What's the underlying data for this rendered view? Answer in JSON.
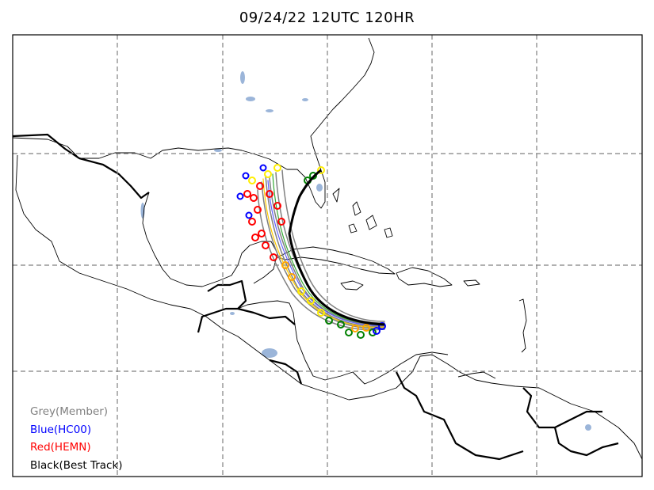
{
  "title": "09/24/22 12UTC 120HR",
  "legend": [
    {
      "label": "Grey(Member)",
      "color": "#808080"
    },
    {
      "label": "Blue(HC00)",
      "color": "#0000ff"
    },
    {
      "label": "Red(HEMN)",
      "color": "#ff0000"
    },
    {
      "label": "Black(Best Track)",
      "color": "#000000"
    }
  ],
  "colors": {
    "water": "#9bb5d9",
    "grid": "#808080",
    "coast": "#000000",
    "marker_yellow": "#ffee00",
    "marker_green": "#008000",
    "marker_orange": "#ffa500"
  }
}
